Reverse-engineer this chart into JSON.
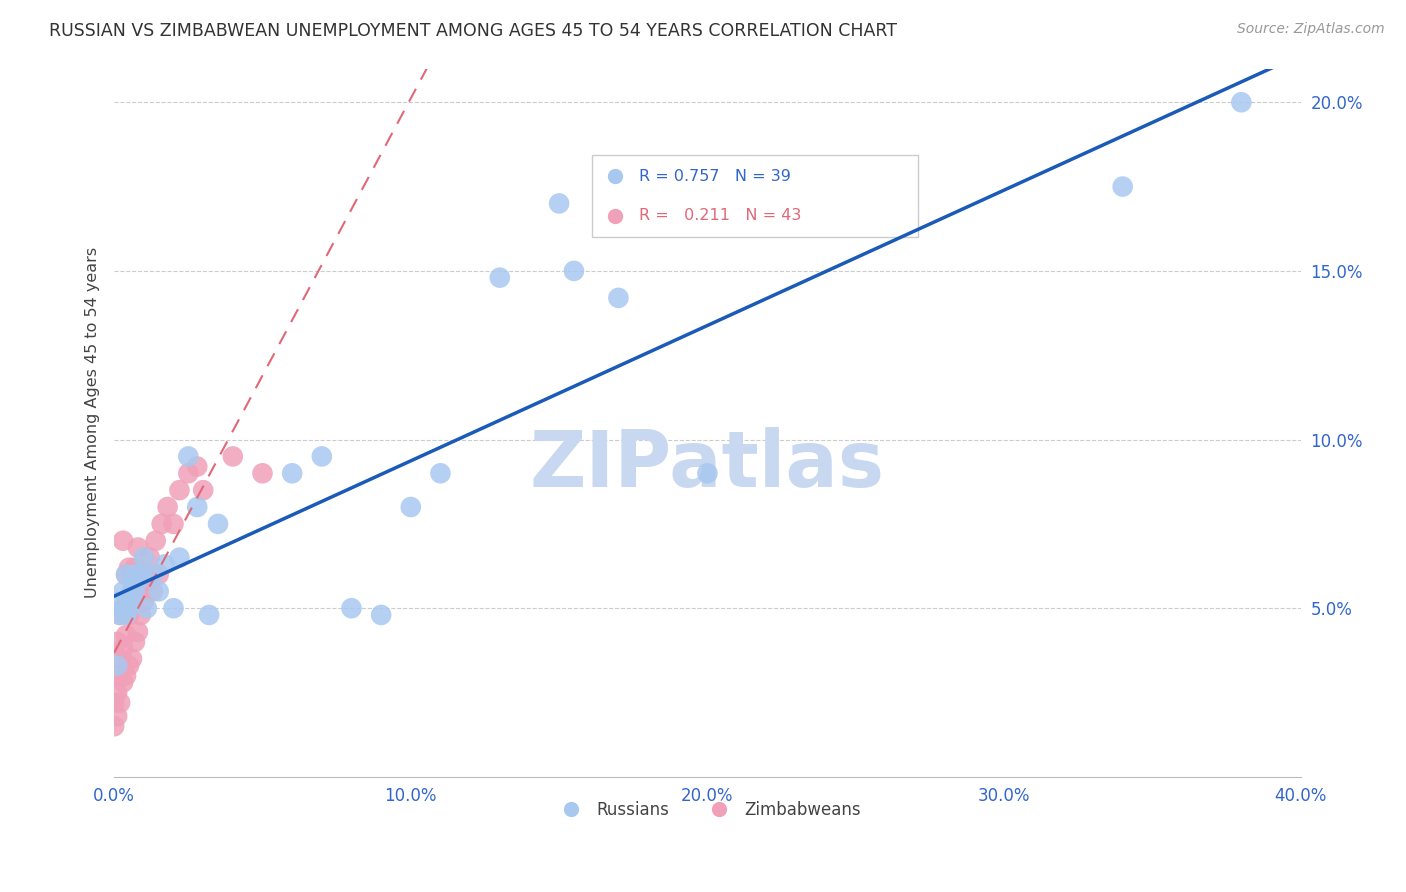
{
  "title": "RUSSIAN VS ZIMBABWEAN UNEMPLOYMENT AMONG AGES 45 TO 54 YEARS CORRELATION CHART",
  "source": "Source: ZipAtlas.com",
  "ylabel": "Unemployment Among Ages 45 to 54 years",
  "xlim": [
    0.0,
    0.4
  ],
  "ylim": [
    0.0,
    0.21
  ],
  "xticks": [
    0.0,
    0.1,
    0.2,
    0.3,
    0.4
  ],
  "yticks": [
    0.05,
    0.1,
    0.15,
    0.2
  ],
  "ytick_labels": [
    "5.0%",
    "10.0%",
    "15.0%",
    "20.0%"
  ],
  "xtick_labels": [
    "0.0%",
    "10.0%",
    "20.0%",
    "30.0%",
    "40.0%"
  ],
  "russian_R": 0.757,
  "russian_N": 39,
  "zimbabwean_R": 0.211,
  "zimbabwean_N": 43,
  "russian_color": "#a8c8f0",
  "zimbabwean_color": "#f0a0b8",
  "russian_line_color": "#1a5ab8",
  "zimbabwean_line_color": "#e06878",
  "watermark_text": "ZIPatlas",
  "watermark_color": "#c8d8f0",
  "russians_x": [
    0.001,
    0.002,
    0.002,
    0.003,
    0.003,
    0.004,
    0.004,
    0.005,
    0.005,
    0.006,
    0.006,
    0.007,
    0.007,
    0.008,
    0.009,
    0.01,
    0.011,
    0.013,
    0.015,
    0.017,
    0.02,
    0.022,
    0.025,
    0.028,
    0.032,
    0.035,
    0.06,
    0.07,
    0.08,
    0.09,
    0.1,
    0.11,
    0.13,
    0.15,
    0.155,
    0.17,
    0.2,
    0.34,
    0.38
  ],
  "russians_y": [
    0.033,
    0.048,
    0.052,
    0.05,
    0.055,
    0.048,
    0.06,
    0.05,
    0.053,
    0.052,
    0.058,
    0.055,
    0.06,
    0.058,
    0.06,
    0.065,
    0.05,
    0.06,
    0.055,
    0.063,
    0.05,
    0.065,
    0.095,
    0.08,
    0.048,
    0.075,
    0.09,
    0.095,
    0.05,
    0.048,
    0.08,
    0.09,
    0.148,
    0.17,
    0.15,
    0.142,
    0.09,
    0.175,
    0.2
  ],
  "zimbabweans_x": [
    0.0,
    0.0,
    0.001,
    0.001,
    0.001,
    0.001,
    0.002,
    0.002,
    0.002,
    0.003,
    0.003,
    0.003,
    0.003,
    0.004,
    0.004,
    0.004,
    0.005,
    0.005,
    0.005,
    0.006,
    0.006,
    0.007,
    0.007,
    0.008,
    0.008,
    0.008,
    0.009,
    0.01,
    0.01,
    0.011,
    0.012,
    0.013,
    0.014,
    0.015,
    0.016,
    0.018,
    0.02,
    0.022,
    0.025,
    0.028,
    0.03,
    0.04,
    0.05
  ],
  "zimbabweans_y": [
    0.022,
    0.015,
    0.025,
    0.018,
    0.03,
    0.04,
    0.022,
    0.035,
    0.048,
    0.028,
    0.038,
    0.05,
    0.07,
    0.03,
    0.042,
    0.06,
    0.033,
    0.048,
    0.062,
    0.035,
    0.055,
    0.04,
    0.062,
    0.043,
    0.055,
    0.068,
    0.048,
    0.052,
    0.06,
    0.058,
    0.065,
    0.055,
    0.07,
    0.06,
    0.075,
    0.08,
    0.075,
    0.085,
    0.09,
    0.092,
    0.085,
    0.095,
    0.09
  ]
}
